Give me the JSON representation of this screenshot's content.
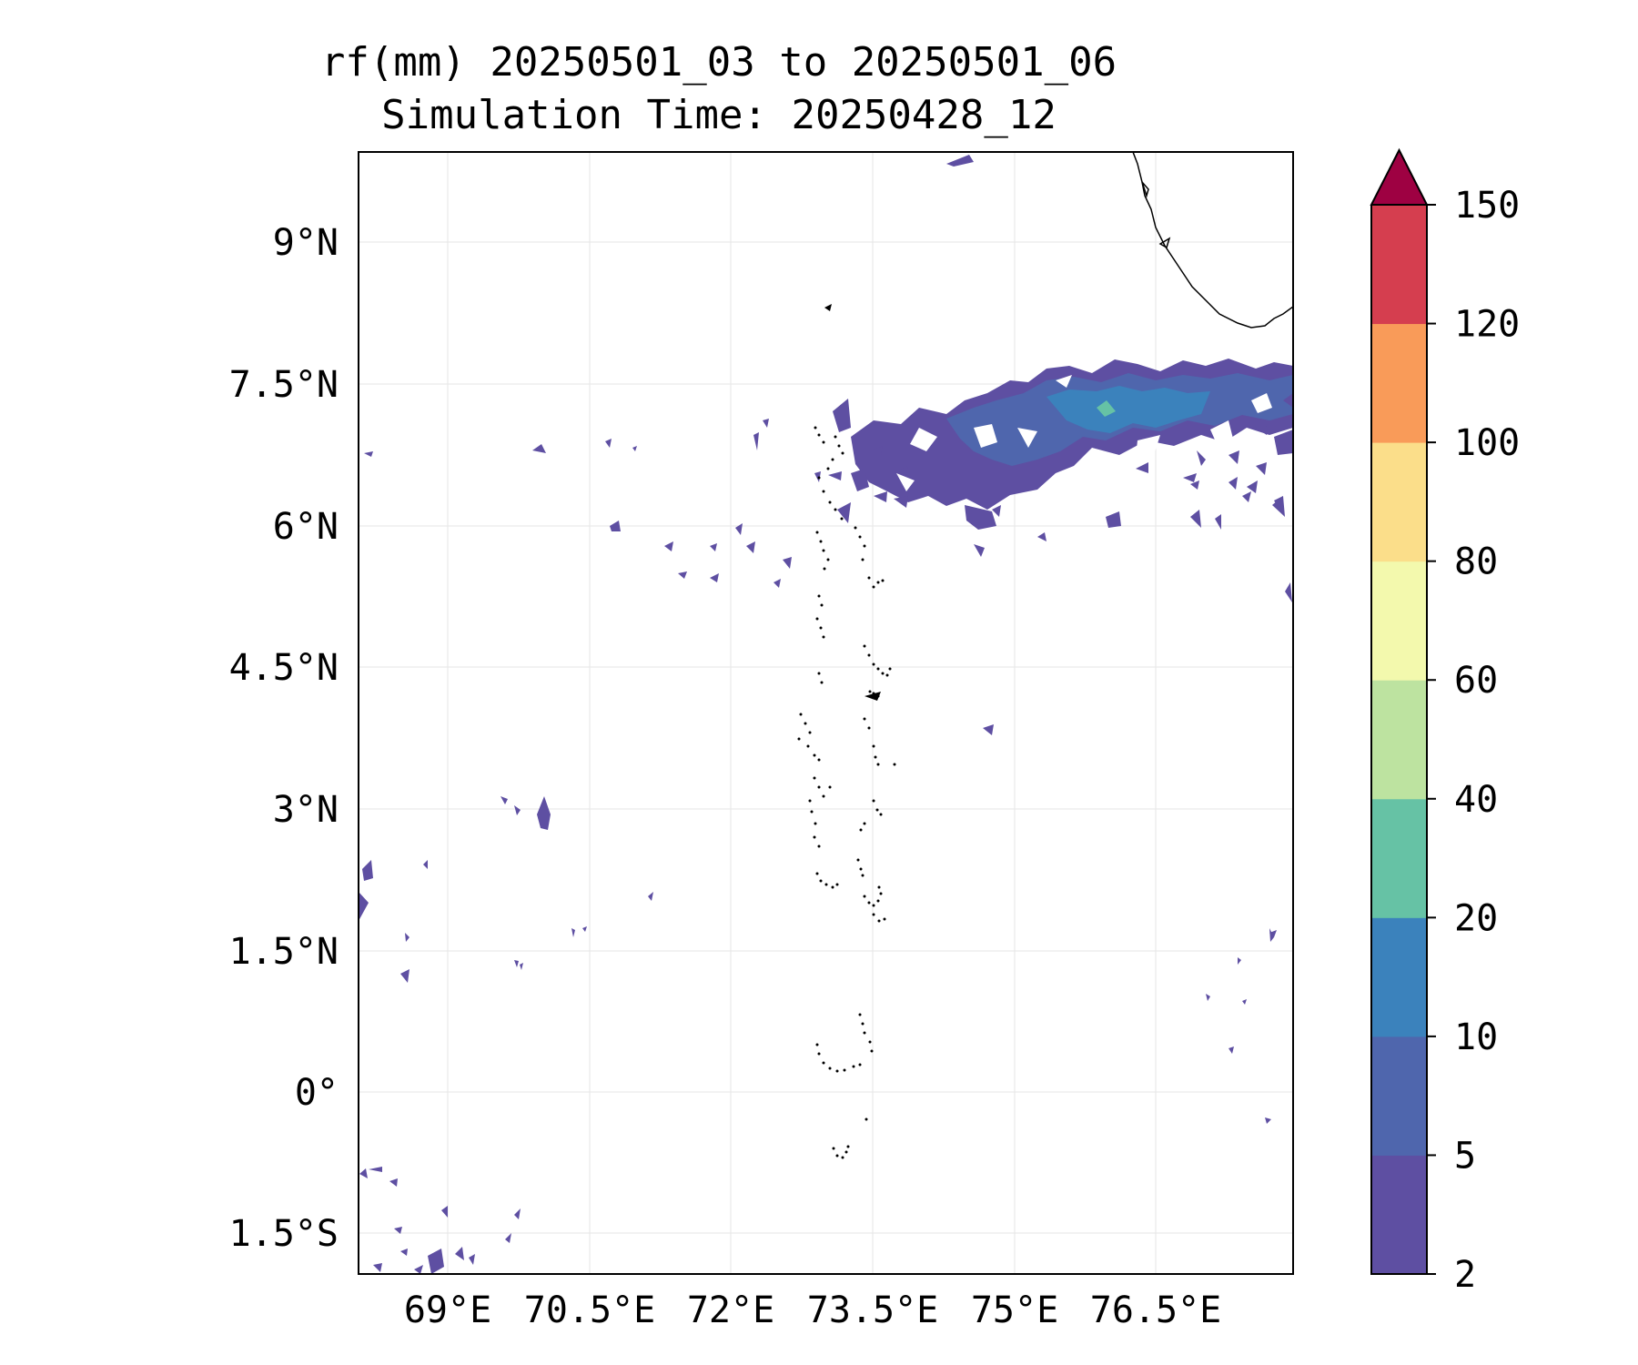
{
  "title": "rf(mm) 20250501_03 to 20250501_06",
  "subtitle": "Simulation Time: 20250428_12",
  "map": {
    "lon_range": [
      67.9,
      78.0
    ],
    "lat_range": [
      -1.9,
      9.95
    ],
    "lon_ticks": [
      "69°E",
      "70.5°E",
      "72°E",
      "73.5°E",
      "75°E",
      "76.5°E"
    ],
    "lat_ticks": [
      "9°N",
      "7.5°N",
      "6°N",
      "4.5°N",
      "3°N",
      "1.5°N",
      "0°",
      "1.5°S"
    ],
    "gridlines": true
  },
  "colorbar": {
    "levels": [
      "2",
      "5",
      "10",
      "20",
      "40",
      "60",
      "80",
      "100",
      "120",
      "150"
    ],
    "colors": [
      "#5e4fa2",
      "#4f66ad",
      "#3b82bc",
      "#66c2a5",
      "#bde3a0",
      "#f3f9ad",
      "#fbde8a",
      "#f99b59",
      "#d53e4f"
    ],
    "extend_color": "#9e0142",
    "extend": "max"
  },
  "colors": {
    "rain_light": "#5e4fa2",
    "rain_5_10": "#4f66ad",
    "rain_10_20": "#3b82bc",
    "rain_20_40": "#66c2a5"
  }
}
